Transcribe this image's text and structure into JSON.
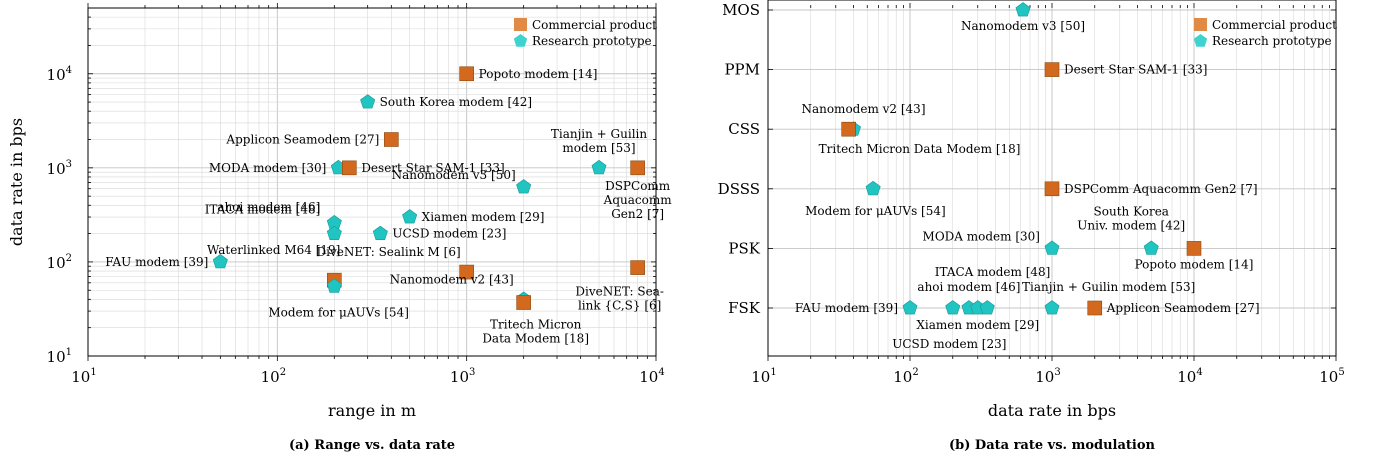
{
  "colors": {
    "commercial": "#d2691e",
    "research": "#20c4c0",
    "legend_commercial": "#e08a45",
    "legend_research": "#3fd3d0"
  },
  "legend": {
    "commercial": "Commercial product",
    "research": "Research prototype"
  },
  "chart_data": [
    {
      "type": "scatter",
      "caption": "(a) Range vs. data rate",
      "xlabel": "range in m",
      "ylabel": "data rate in bps",
      "xscale": "log",
      "yscale": "log",
      "xlim": [
        10,
        10000
      ],
      "ylim": [
        10,
        50000
      ],
      "grid": true,
      "legend_position": "top-right",
      "xticks": [
        {
          "base": "10",
          "exp": "1",
          "v": 10
        },
        {
          "base": "10",
          "exp": "2",
          "v": 100
        },
        {
          "base": "10",
          "exp": "3",
          "v": 1000
        },
        {
          "base": "10",
          "exp": "4",
          "v": 10000
        }
      ],
      "yticks": [
        {
          "base": "10",
          "exp": "1",
          "v": 10
        },
        {
          "base": "10",
          "exp": "2",
          "v": 100
        },
        {
          "base": "10",
          "exp": "3",
          "v": 1000
        },
        {
          "base": "10",
          "exp": "4",
          "v": 10000
        }
      ],
      "points": [
        {
          "label": [
            "Popoto modem [14]"
          ],
          "x": 1000,
          "y": 10000,
          "kind": "commercial",
          "pos": "right"
        },
        {
          "label": [
            "South Korea modem [42]"
          ],
          "x": 300,
          "y": 5000,
          "kind": "research",
          "pos": "right"
        },
        {
          "label": [
            "Applicon Seamodem [27]"
          ],
          "x": 400,
          "y": 2000,
          "kind": "commercial",
          "pos": "left"
        },
        {
          "label": [
            "Tianjin + Guilin",
            "modem [53]"
          ],
          "x": 5000,
          "y": 1000,
          "kind": "research",
          "pos": "above"
        },
        {
          "label": [
            "DSPComm",
            "Aquacomm",
            "Gen2 [7]"
          ],
          "x": 8000,
          "y": 1000,
          "kind": "commercial",
          "pos": "below"
        },
        {
          "label": [
            "MODA modem [30]"
          ],
          "x": 210,
          "y": 1000,
          "kind": "research",
          "pos": "left"
        },
        {
          "label": [
            "Desert Star SAM-1 [33]"
          ],
          "x": 240,
          "y": 1000,
          "kind": "commercial",
          "pos": "right"
        },
        {
          "label": [
            "Nanomodem v3 [50]"
          ],
          "x": 2000,
          "y": 625,
          "kind": "research",
          "pos": "leftabove"
        },
        {
          "label": [
            "ahoi modem [46]"
          ],
          "x": 200,
          "y": 260,
          "kind": "research",
          "pos": "leftup"
        },
        {
          "label": [
            "Xiamen modem [29]"
          ],
          "x": 500,
          "y": 300,
          "kind": "research",
          "pos": "right"
        },
        {
          "label": [
            "ITACA modem [48]"
          ],
          "x": 200,
          "y": 200,
          "kind": "research",
          "pos": "leftdown"
        },
        {
          "label": [
            "UCSD modem [23]"
          ],
          "x": 350,
          "y": 200,
          "kind": "research",
          "pos": "right"
        },
        {
          "label": [
            "FAU modem [39]"
          ],
          "x": 50,
          "y": 100,
          "kind": "research",
          "pos": "left"
        },
        {
          "label": [
            "Waterlinked M64 [19]"
          ],
          "x": 200,
          "y": 64,
          "kind": "commercial",
          "pos": "rightup"
        },
        {
          "label": [
            "Modem for μAUVs [54]"
          ],
          "x": 200,
          "y": 55,
          "kind": "research",
          "pos": "belowright"
        },
        {
          "label": [
            "DiveNET: Sealink M [6]"
          ],
          "x": 1000,
          "y": 78,
          "kind": "commercial",
          "pos": "rightup"
        },
        {
          "label": [
            "Nanomodem v2 [43]"
          ],
          "x": 2000,
          "y": 40,
          "kind": "research",
          "pos": "leftup2"
        },
        {
          "label": [
            "Tritech Micron",
            "Data Modem [18]"
          ],
          "x": 2000,
          "y": 37,
          "kind": "commercial",
          "pos": "below"
        },
        {
          "label": [
            "DiveNET: Sea-",
            "link {C,S} [6]"
          ],
          "x": 8000,
          "y": 87,
          "kind": "commercial",
          "pos": "below"
        }
      ]
    },
    {
      "type": "scatter",
      "caption": "(b) Data rate vs. modulation",
      "xlabel": "data rate in bps",
      "ylabel": "",
      "xscale": "log",
      "xlim": [
        10,
        100000
      ],
      "categories": [
        "MOS",
        "PPM",
        "CSS",
        "DSSS",
        "PSK",
        "FSK"
      ],
      "grid": true,
      "legend_position": "top-right",
      "xticks": [
        {
          "base": "10",
          "exp": "1",
          "v": 10
        },
        {
          "base": "10",
          "exp": "2",
          "v": 100
        },
        {
          "base": "10",
          "exp": "3",
          "v": 1000
        },
        {
          "base": "10",
          "exp": "4",
          "v": 10000
        },
        {
          "base": "10",
          "exp": "5",
          "v": 100000
        }
      ],
      "points": [
        {
          "label": [
            "Nanomodem v3 [50]"
          ],
          "x": 625,
          "cat": "MOS",
          "kind": "research",
          "pos": "below"
        },
        {
          "label": [
            "Desert Star SAM-1 [33]"
          ],
          "x": 1000,
          "cat": "PPM",
          "kind": "commercial",
          "pos": "right"
        },
        {
          "label": [
            "Nanomodem v2 [43]"
          ],
          "x": 40,
          "cat": "CSS",
          "kind": "research",
          "pos": "above"
        },
        {
          "label": [
            "Tritech Micron Data Modem [18]"
          ],
          "x": 37,
          "cat": "CSS",
          "kind": "commercial",
          "pos": "belowwide"
        },
        {
          "label": [
            "Modem for μAUVs [54]"
          ],
          "x": 55,
          "cat": "DSSS",
          "kind": "research",
          "pos": "belowright"
        },
        {
          "label": [
            "DSPComm Aquacomm Gen2 [7]"
          ],
          "x": 1000,
          "cat": "DSSS",
          "kind": "commercial",
          "pos": "right"
        },
        {
          "label": [
            "MODA modem [30]"
          ],
          "x": 1000,
          "cat": "PSK",
          "kind": "research",
          "pos": "leftabove"
        },
        {
          "label": [
            "South Korea",
            "Univ. modem [42]"
          ],
          "x": 5000,
          "cat": "PSK",
          "kind": "research",
          "pos": "above"
        },
        {
          "label": [
            "Popoto modem [14]"
          ],
          "x": 10000,
          "cat": "PSK",
          "kind": "commercial",
          "pos": "below"
        },
        {
          "label": [
            "FAU modem [39]"
          ],
          "x": 100,
          "cat": "FSK",
          "kind": "research",
          "pos": "left"
        },
        {
          "label": [
            "ITACA modem [48]"
          ],
          "x": 200,
          "cat": "FSK",
          "kind": "research",
          "pos": "aboveup"
        },
        {
          "label": [
            "ahoi modem [46]"
          ],
          "x": 260,
          "cat": "FSK",
          "kind": "research",
          "pos": "above"
        },
        {
          "label": [
            "Xiamen modem [29]"
          ],
          "x": 300,
          "cat": "FSK",
          "kind": "research",
          "pos": "below"
        },
        {
          "label": [
            "UCSD modem [23]"
          ],
          "x": 350,
          "cat": "FSK",
          "kind": "research",
          "pos": "belowdown"
        },
        {
          "label": [
            "Tianjin + Guilin modem [53]"
          ],
          "x": 1000,
          "cat": "FSK",
          "kind": "research",
          "pos": "aboveright"
        },
        {
          "label": [
            "Applicon Seamodem [27]"
          ],
          "x": 2000,
          "cat": "FSK",
          "kind": "commercial",
          "pos": "right"
        }
      ]
    }
  ]
}
